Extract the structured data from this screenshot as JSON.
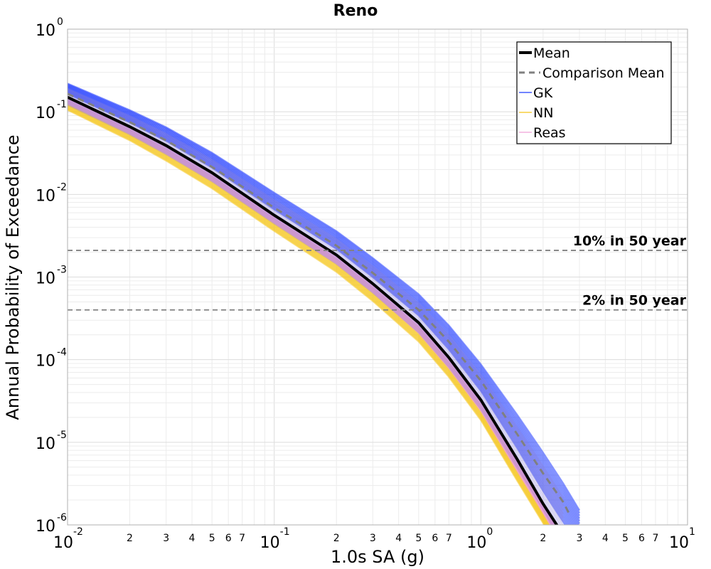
{
  "chart_data": {
    "type": "line",
    "title": "Reno",
    "xlabel": "1.0s SA (g)",
    "ylabel": "Annual Probability of Exceedance",
    "x_scale": "log",
    "y_scale": "log",
    "xlim": [
      0.01,
      10
    ],
    "ylim": [
      1e-06,
      1
    ],
    "grid": true,
    "legend_position": "top-right",
    "x_major_ticks": [
      {
        "base": "10",
        "exp": "-2"
      },
      {
        "base": "10",
        "exp": "-1"
      },
      {
        "base": "10",
        "exp": "0"
      },
      {
        "base": "10",
        "exp": "1"
      }
    ],
    "y_major_ticks": [
      {
        "base": "10",
        "exp": "0"
      },
      {
        "base": "10",
        "exp": "-1"
      },
      {
        "base": "10",
        "exp": "-2"
      },
      {
        "base": "10",
        "exp": "-3"
      },
      {
        "base": "10",
        "exp": "-4"
      },
      {
        "base": "10",
        "exp": "-5"
      },
      {
        "base": "10",
        "exp": "-6"
      }
    ],
    "x_minor_tick_labels": [
      "2",
      "3",
      "4",
      "5",
      "6",
      "7"
    ],
    "reference_lines": [
      {
        "label": "10% in 50 year",
        "y": 0.0021
      },
      {
        "label": "2% in 50 year",
        "y": 0.0004
      }
    ],
    "legend": [
      {
        "label": "Mean",
        "style": "thick-solid",
        "color": "#000000"
      },
      {
        "label": "Comparison Mean",
        "style": "dashed",
        "color": "#808080"
      },
      {
        "label": "GK",
        "style": "thin-solid",
        "color": "#1f3bff"
      },
      {
        "label": "NN",
        "style": "thin-solid",
        "color": "#f5c518"
      },
      {
        "label": "Reas",
        "style": "thin-solid",
        "color": "#f0a0d8"
      }
    ],
    "series": [
      {
        "name": "Mean",
        "color": "#000000",
        "x": [
          0.01,
          0.02,
          0.03,
          0.05,
          0.1,
          0.2,
          0.3,
          0.5,
          0.7,
          1.0,
          1.5,
          2.0,
          2.5
        ],
        "y": [
          0.15,
          0.066,
          0.039,
          0.0183,
          0.0056,
          0.00185,
          0.00083,
          0.00028,
          0.000106,
          3.25e-05,
          6.2e-06,
          1.8e-06,
          7.6e-07
        ]
      },
      {
        "name": "Comparison Mean",
        "color": "#808080",
        "x": [
          0.01,
          0.02,
          0.03,
          0.05,
          0.1,
          0.2,
          0.3,
          0.5,
          0.7,
          1.0,
          1.5,
          2.0,
          2.5,
          2.7
        ],
        "y": [
          0.165,
          0.075,
          0.045,
          0.0215,
          0.0069,
          0.0024,
          0.00112,
          0.0004,
          0.000165,
          5.55e-05,
          1.25e-05,
          4.2e-06,
          1.9e-06,
          1.3e-06
        ]
      },
      {
        "name": "GK",
        "color": "#1f3bff",
        "x": [
          0.01,
          0.02,
          0.03,
          0.05,
          0.1,
          0.2,
          0.3,
          0.5,
          0.7,
          1.0,
          1.5,
          2.0,
          2.5,
          3.0
        ],
        "y": [
          0.22,
          0.105,
          0.065,
          0.032,
          0.0105,
          0.0036,
          0.0017,
          0.00062,
          0.00026,
          8.8e-05,
          2.15e-05,
          7.5e-06,
          3.2e-06,
          1.5e-06
        ]
      },
      {
        "name": "NN",
        "color": "#f5c518",
        "x": [
          0.01,
          0.02,
          0.03,
          0.05,
          0.1,
          0.2,
          0.3,
          0.5,
          0.7,
          1.0,
          1.5,
          2.0,
          2.3
        ],
        "y": [
          0.105,
          0.045,
          0.0255,
          0.0118,
          0.0036,
          0.00115,
          0.00051,
          0.000165,
          6.15e-05,
          1.85e-05,
          3.4e-06,
          1.05e-06,
          5.5e-07
        ]
      },
      {
        "name": "Reas",
        "color": "#f0a0d8",
        "x": [
          0.01,
          0.02,
          0.03,
          0.05,
          0.1,
          0.2,
          0.3,
          0.5,
          0.7,
          1.0,
          1.5,
          2.0,
          2.4
        ],
        "y": [
          0.125,
          0.054,
          0.031,
          0.0145,
          0.0045,
          0.00145,
          0.00065,
          0.00021,
          7.9e-05,
          2.4e-05,
          4.5e-06,
          1.4e-06,
          6.5e-07
        ]
      }
    ]
  }
}
